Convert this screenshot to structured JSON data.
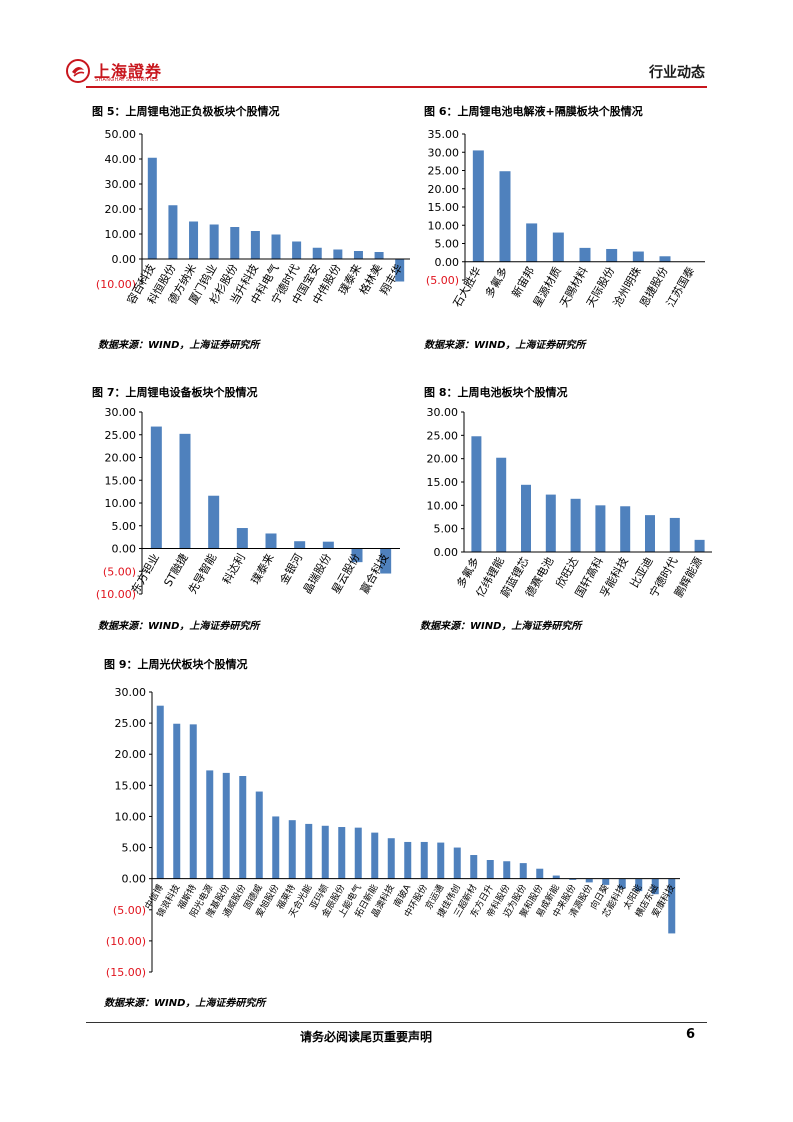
{
  "header": {
    "logo_text": "上海證券",
    "logo_sub": "SHANGHAI SECURITIES",
    "section": "行业动态"
  },
  "figures": [
    {
      "title": "图 5：上周锂电池正负极板块个股情况",
      "source": "数据来源：WIND，上海证券研究所"
    },
    {
      "title": "图 6：上周锂电池电解液+隔膜板块个股情况",
      "source": "数据来源：WIND，上海证券研究所"
    },
    {
      "title": "图 7：上周锂电设备板块个股情况",
      "source": "数据来源：WIND，上海证券研究所"
    },
    {
      "title": "图 8：上周电池板块个股情况",
      "source": "数据来源：WIND，上海证券研究所"
    },
    {
      "title": "图 9：上周光伏板块个股情况",
      "source": "数据来源：WIND，上海证券研究所"
    }
  ],
  "chart_data": [
    {
      "type": "bar",
      "title": "图 5：上周锂电池正负极板块个股情况",
      "ylim": [
        -10,
        50
      ],
      "yticks": [
        "(10.00)",
        "0.00",
        "10.00",
        "20.00",
        "30.00",
        "40.00",
        "50.00"
      ],
      "ytick_values": [
        -10,
        0,
        10,
        20,
        30,
        40,
        50
      ],
      "categories": [
        "容百科技",
        "科恒股份",
        "德方纳米",
        "厦门钨业",
        "杉杉股份",
        "当升科技",
        "中科电气",
        "宁德时代",
        "中国宝安",
        "中伟股份",
        "璞泰来",
        "格林美",
        "翔丰华"
      ],
      "values": [
        40.5,
        21.5,
        15.0,
        13.8,
        12.8,
        11.2,
        9.8,
        7.0,
        4.5,
        3.8,
        3.2,
        2.8,
        -9.0
      ]
    },
    {
      "type": "bar",
      "title": "图 6：上周锂电池电解液+隔膜板块个股情况",
      "ylim": [
        -5,
        35
      ],
      "yticks": [
        "(5.00)",
        "0.00",
        "5.00",
        "10.00",
        "15.00",
        "20.00",
        "25.00",
        "30.00",
        "35.00"
      ],
      "ytick_values": [
        -5,
        0,
        5,
        10,
        15,
        20,
        25,
        30,
        35
      ],
      "categories": [
        "石大胜华",
        "多氟多",
        "新宙邦",
        "星源材质",
        "天赐材料",
        "天际股份",
        "沧州明珠",
        "恩捷股份",
        "江苏国泰"
      ],
      "values": [
        30.5,
        24.8,
        10.5,
        8.0,
        3.8,
        3.5,
        2.8,
        1.5,
        0
      ]
    },
    {
      "type": "bar",
      "title": "图 7：上周锂电设备板块个股情况",
      "ylim": [
        -10,
        30
      ],
      "yticks": [
        "(10.00)",
        "(5.00)",
        "0.00",
        "5.00",
        "10.00",
        "15.00",
        "20.00",
        "25.00",
        "30.00"
      ],
      "ytick_values": [
        -10,
        -5,
        0,
        5,
        10,
        15,
        20,
        25,
        30
      ],
      "categories": [
        "东方钽业",
        "ST融捷",
        "先导智能",
        "科达利",
        "璞泰来",
        "金银河",
        "晶瑞股份",
        "星云股份",
        "赢合科技"
      ],
      "values": [
        26.8,
        25.2,
        11.6,
        4.5,
        3.3,
        1.6,
        1.5,
        -3.0,
        -5.5
      ]
    },
    {
      "type": "bar",
      "title": "图 8：上周电池板块个股情况",
      "ylim": [
        0,
        30
      ],
      "yticks": [
        "0.00",
        "5.00",
        "10.00",
        "15.00",
        "20.00",
        "25.00",
        "30.00"
      ],
      "ytick_values": [
        0,
        5,
        10,
        15,
        20,
        25,
        30
      ],
      "categories": [
        "多氟多",
        "亿纬锂能",
        "蔚蓝锂芯",
        "德赛电池",
        "欣旺达",
        "国轩高科",
        "孚能科技",
        "比亚迪",
        "宁德时代",
        "鹏辉能源"
      ],
      "values": [
        24.8,
        20.2,
        14.4,
        12.3,
        11.4,
        10.0,
        9.8,
        7.9,
        7.3,
        2.6
      ]
    },
    {
      "type": "bar",
      "title": "图 9：上周光伏板块个股情况",
      "ylim": [
        -15,
        30
      ],
      "yticks": [
        "(15.00)",
        "(10.00)",
        "(5.00)",
        "0.00",
        "5.00",
        "10.00",
        "15.00",
        "20.00",
        "25.00",
        "30.00"
      ],
      "ytick_values": [
        -15,
        -10,
        -5,
        0,
        5,
        10,
        15,
        20,
        25,
        30
      ],
      "categories": [
        "中信博",
        "锦浪科技",
        "福斯特",
        "阳光电源",
        "隆基股份",
        "通威股份",
        "固德威",
        "爱旭股份",
        "福莱特",
        "天合光能",
        "亚玛顿",
        "金辰股份",
        "上能电气",
        "拓日新能",
        "晶澳科技",
        "南玻A",
        "中环股份",
        "京运通",
        "捷佳伟创",
        "三超新材",
        "东方日升",
        "帝科股份",
        "迈为股份",
        "聚和股份",
        "易成新能",
        "中来股份",
        "清源股份",
        "向日葵",
        "芯能科技",
        "太阳能",
        "横店东磁",
        "爱康科技"
      ],
      "values": [
        27.8,
        24.9,
        24.8,
        17.4,
        17.0,
        16.5,
        14.0,
        10.0,
        9.4,
        8.8,
        8.5,
        8.3,
        8.2,
        7.4,
        6.5,
        5.9,
        5.9,
        5.8,
        5.0,
        3.8,
        3.0,
        2.8,
        2.5,
        1.6,
        0.5,
        -0.2,
        -0.6,
        -1.0,
        -1.6,
        -2.0,
        -2.5,
        -8.8
      ]
    }
  ],
  "footer": {
    "disclaimer": "请务必阅读尾页重要声明",
    "page": "6"
  }
}
